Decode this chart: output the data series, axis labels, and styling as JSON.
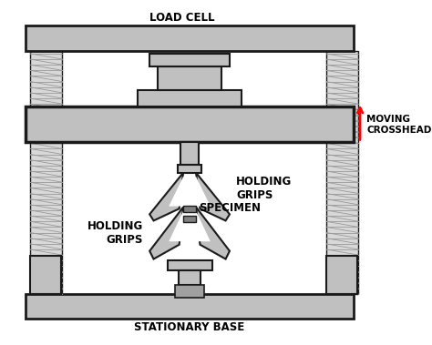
{
  "title": "STATIONARY BASE",
  "load_cell_label": "LOAD CELL",
  "moving_crosshead_label": "MOVING\nCROSSHEAD",
  "holding_grips_upper_label": "HOLDING\nGRIPS",
  "holding_grips_lower_label": "HOLDING\nGRIPS",
  "specimen_label": "SPECIMEN",
  "gray_fill": "#C0C0C0",
  "outline_color": "#1a1a1a",
  "background_color": "#FFFFFF"
}
